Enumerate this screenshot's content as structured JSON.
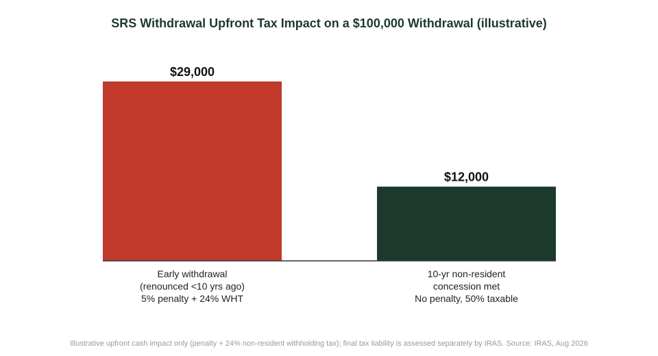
{
  "chart_data": {
    "type": "bar",
    "title": "SRS Withdrawal Upfront Tax Impact on a $100,000 Withdrawal (illustrative)",
    "categories": [
      [
        "Early withdrawal",
        "(renounced <10 yrs ago)",
        "5% penalty + 24% WHT"
      ],
      [
        "10-yr non-resident",
        "concession met",
        "No penalty, 50% taxable"
      ]
    ],
    "values": [
      29000,
      12000
    ],
    "data_labels": [
      "$29,000",
      "$12,000"
    ],
    "colors": [
      "#c0392b",
      "#1c3a2b"
    ],
    "ylim": [
      0,
      29000
    ],
    "grid": false,
    "legend": "none",
    "xlabel": "",
    "ylabel": ""
  },
  "footnote": "Illustrative upfront cash impact only (penalty + 24% non-resident withholding tax); final tax liability is assessed separately by IRAS. Source: IRAS, Aug 2026"
}
